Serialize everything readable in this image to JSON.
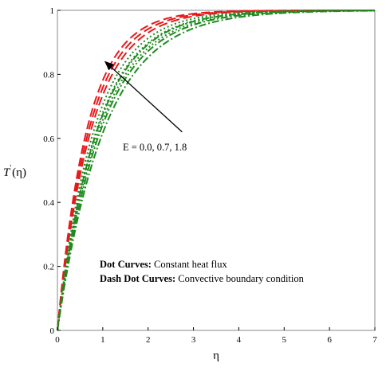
{
  "chart_data": {
    "type": "line",
    "title": "",
    "xlabel": "η",
    "ylabel_prefix": "T",
    "ylabel_prime": "'",
    "ylabel_suffix": "(η)",
    "xlim": [
      0,
      7
    ],
    "ylim": [
      0,
      1
    ],
    "xticks": [
      "0",
      "1",
      "2",
      "3",
      "4",
      "5",
      "6",
      "7"
    ],
    "yticks": [
      "0",
      "0.2",
      "0.4",
      "0.6",
      "0.8",
      "1"
    ],
    "grid": false,
    "annotation": {
      "text": "E = 0.0, 0.7, 1.8",
      "arrow_from": [
        2.75,
        0.62
      ],
      "arrow_to": [
        1.05,
        0.84
      ]
    },
    "legend": [
      {
        "label_bold": "Dot Curves:",
        "label_rest": " Constant heat flux"
      },
      {
        "label_bold": "Dash Dot Curves:",
        "label_rest": " Convective boundary condition"
      }
    ],
    "series": [
      {
        "group": "red-dash",
        "color": "#e8191a",
        "dash": "11,5",
        "k": 1.52,
        "E": 0.0
      },
      {
        "group": "red-dash",
        "color": "#e8191a",
        "dash": "11,5",
        "k": 1.42,
        "E": 0.7
      },
      {
        "group": "red-dash",
        "color": "#e8191a",
        "dash": "11,5",
        "k": 1.33,
        "E": 1.8
      },
      {
        "group": "dot",
        "color": "#1f8a1f",
        "dash": "2,3",
        "k": 1.22,
        "E": 0.0
      },
      {
        "group": "dot",
        "color": "#1f8a1f",
        "dash": "2,3",
        "k": 1.14,
        "E": 0.7
      },
      {
        "group": "dot",
        "color": "#1f8a1f",
        "dash": "2,3",
        "k": 1.07,
        "E": 1.8
      },
      {
        "group": "dash-dot",
        "color": "#1f8a1f",
        "dash": "9,3,2,3",
        "k": 1.12,
        "E": 0.0
      },
      {
        "group": "dash-dot",
        "color": "#1f8a1f",
        "dash": "9,3,2,3",
        "k": 1.03,
        "E": 0.7
      },
      {
        "group": "dash-dot",
        "color": "#1f8a1f",
        "dash": "9,3,2,3",
        "k": 0.96,
        "E": 1.8
      }
    ]
  }
}
